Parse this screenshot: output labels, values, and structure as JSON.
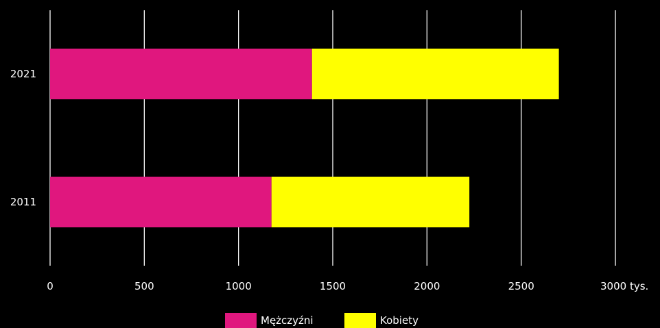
{
  "chart_data": {
    "type": "bar",
    "orientation": "horizontal",
    "stacked": true,
    "categories": [
      "2021",
      "2011"
    ],
    "series": [
      {
        "name": "Mężczyźni",
        "color": "#E0177E",
        "values": [
          1390,
          1175
        ]
      },
      {
        "name": "Kobiety",
        "color": "#FFFF00",
        "values": [
          1310,
          1050
        ]
      }
    ],
    "xticks": [
      "0",
      "500",
      "1000",
      "1500",
      "2000",
      "2500",
      "3000 tys."
    ],
    "xlim": [
      0,
      3000
    ],
    "grid": true,
    "grid_color": "#ffffff",
    "background": "#000000",
    "legend_position": "bottom-center"
  }
}
